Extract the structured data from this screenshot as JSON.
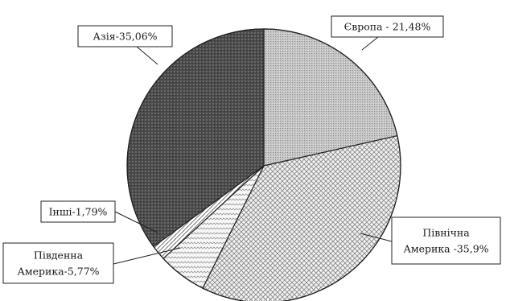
{
  "chart_data": {
    "type": "pie",
    "title": "",
    "start_angle_deg": 0,
    "direction": "clockwise",
    "slices": [
      {
        "label": "Європа - 21,48%",
        "value": 21.48,
        "pattern": "fine-gray"
      },
      {
        "label": "Північна Америка -35,9%",
        "value": 35.9,
        "pattern": "checker"
      },
      {
        "label": "Південна Америка-5,77%",
        "value": 5.77,
        "pattern": "zigzag"
      },
      {
        "label": "Інші-1,79%",
        "value": 1.79,
        "pattern": "diagonal"
      },
      {
        "label": "Азія-35,06%",
        "value": 35.06,
        "pattern": "dark-crosshatch"
      }
    ]
  }
}
